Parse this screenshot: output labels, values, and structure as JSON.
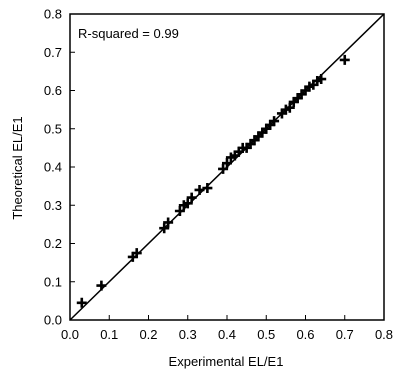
{
  "chart_data": {
    "type": "scatter",
    "xlabel": "Experimental EL/E1",
    "ylabel": "Theoretical EL/E1",
    "xlim": [
      0,
      0.8
    ],
    "ylim": [
      0,
      0.8
    ],
    "xticks": [
      "0.0",
      "0.1",
      "0.2",
      "0.3",
      "0.4",
      "0.5",
      "0.6",
      "0.7",
      "0.8"
    ],
    "yticks": [
      "0.0",
      "0.1",
      "0.2",
      "0.3",
      "0.4",
      "0.5",
      "0.6",
      "0.7",
      "0.8"
    ],
    "annotation": "R-squared = 0.99",
    "reference_line": {
      "from": [
        0,
        0
      ],
      "to": [
        0.8,
        0.8
      ]
    },
    "grid": false,
    "marker": "plus",
    "series": [
      {
        "x": [
          0.03,
          0.08,
          0.16,
          0.17,
          0.24,
          0.25,
          0.28,
          0.29,
          0.3,
          0.31,
          0.33,
          0.35,
          0.39,
          0.4,
          0.41,
          0.42,
          0.43,
          0.44,
          0.45,
          0.46,
          0.47,
          0.48,
          0.49,
          0.5,
          0.51,
          0.52,
          0.54,
          0.55,
          0.56,
          0.57,
          0.58,
          0.59,
          0.6,
          0.61,
          0.62,
          0.63,
          0.64,
          0.7
        ],
        "y": [
          0.045,
          0.09,
          0.165,
          0.175,
          0.24,
          0.255,
          0.285,
          0.3,
          0.305,
          0.32,
          0.34,
          0.345,
          0.395,
          0.41,
          0.425,
          0.43,
          0.44,
          0.45,
          0.45,
          0.46,
          0.47,
          0.48,
          0.49,
          0.5,
          0.51,
          0.52,
          0.54,
          0.55,
          0.555,
          0.57,
          0.58,
          0.59,
          0.6,
          0.61,
          0.615,
          0.625,
          0.63,
          0.68
        ]
      }
    ]
  }
}
